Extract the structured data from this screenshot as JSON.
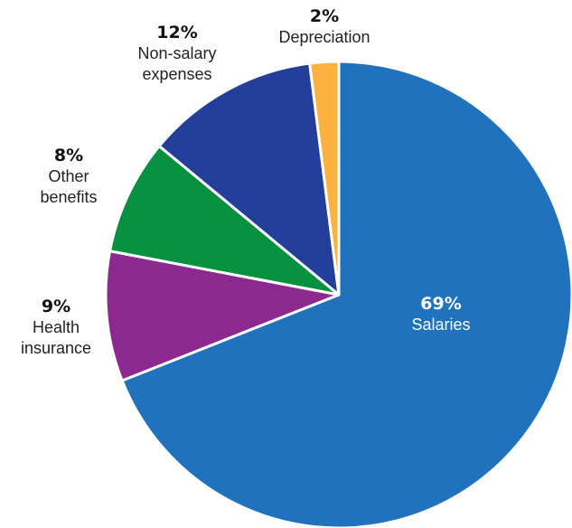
{
  "chart_data": {
    "type": "pie",
    "title": "",
    "categories": [
      "Salaries",
      "Health insurance",
      "Other benefits",
      "Non-salary expenses",
      "Depreciation"
    ],
    "values": [
      69,
      9,
      8,
      12,
      2
    ],
    "units": "%",
    "colors": [
      "#1f72bb",
      "#8d288f",
      "#079040",
      "#233f99",
      "#fbb040"
    ],
    "slice_border_color": "#ffffff",
    "start_angle_deg": 0,
    "direction": "clockwise",
    "labels": [
      {
        "category": "Salaries",
        "percent_text": "69%",
        "label_lines": [
          "Salaries"
        ],
        "placement": "inside"
      },
      {
        "category": "Health insurance",
        "percent_text": "9%",
        "label_lines": [
          "Health",
          "insurance"
        ],
        "placement": "outside"
      },
      {
        "category": "Other benefits",
        "percent_text": "8%",
        "label_lines": [
          "Other",
          "benefits"
        ],
        "placement": "outside"
      },
      {
        "category": "Non-salary expenses",
        "percent_text": "12%",
        "label_lines": [
          "Non-salary",
          "expenses"
        ],
        "placement": "outside"
      },
      {
        "category": "Depreciation",
        "percent_text": "2%",
        "label_lines": [
          "Depreciation"
        ],
        "placement": "outside"
      }
    ],
    "legend": "none"
  }
}
